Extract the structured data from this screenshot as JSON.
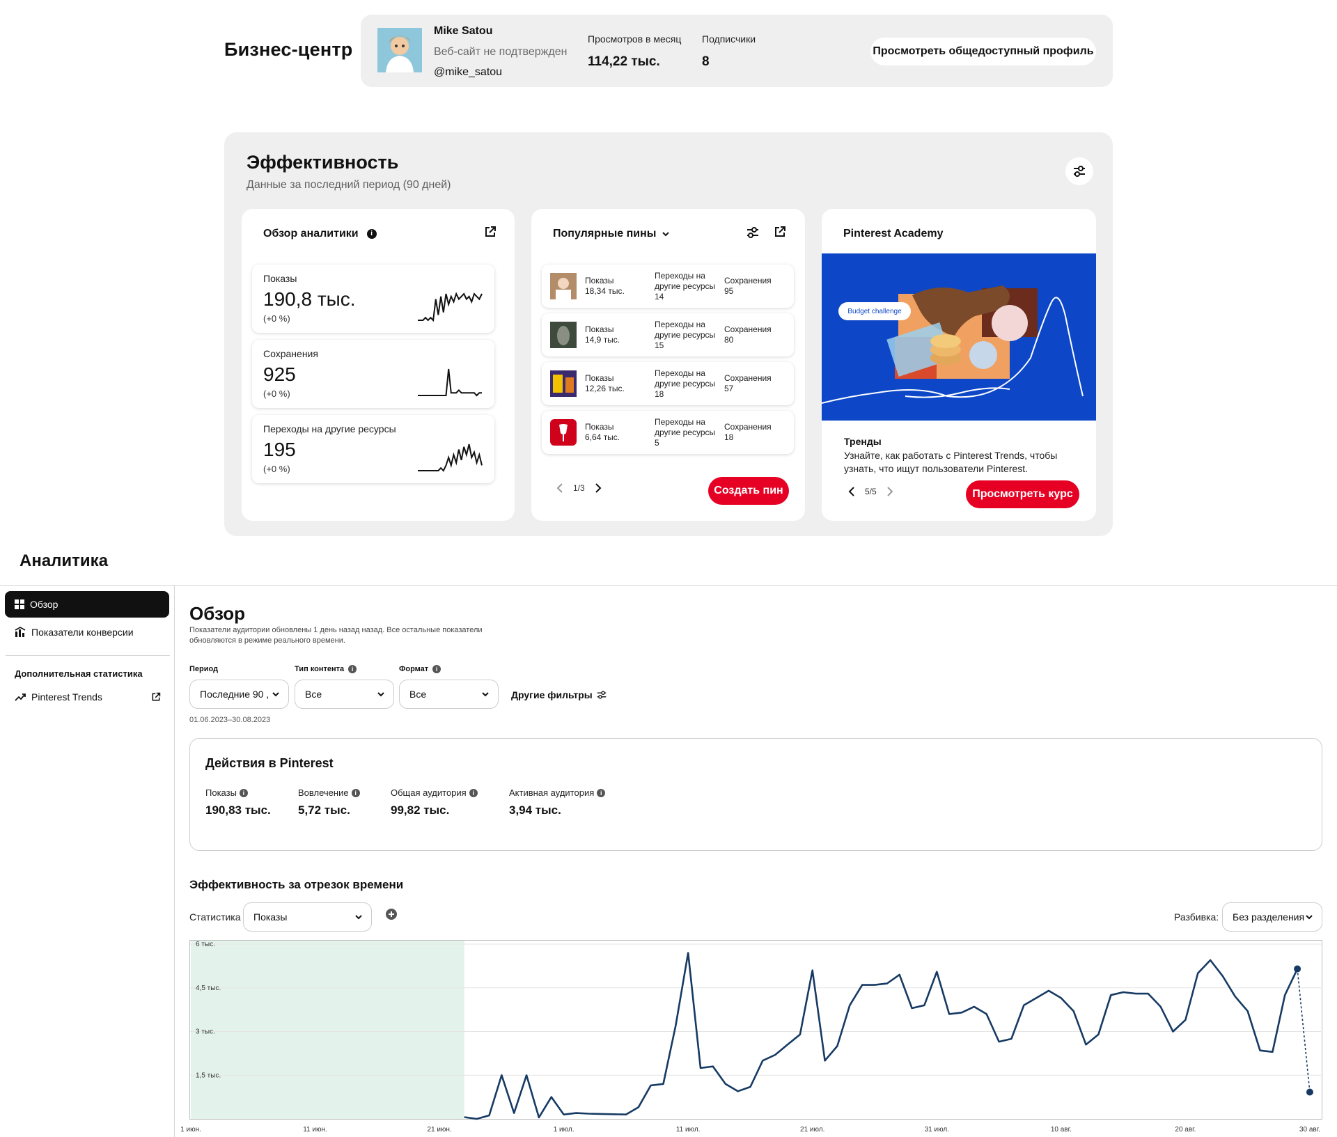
{
  "business": {
    "title": "Бизнес-центр",
    "profile": {
      "name": "Mike Satou",
      "website_status": "Веб-сайт не подтвержден",
      "handle": "@mike_satou",
      "monthly_views_label": "Просмотров в месяц",
      "monthly_views": "114,22 тыс.",
      "followers_label": "Подписчики",
      "followers": "8",
      "public_profile_button": "Просмотреть общедоступный профиль"
    }
  },
  "performance": {
    "title": "Эффективность",
    "subtitle": "Данные за последний период (90 дней)",
    "overview": {
      "title": "Обзор аналитики",
      "metrics": [
        {
          "label": "Показы",
          "value": "190,8 тыс.",
          "change": "(+0 %)",
          "spark": [
            0,
            0,
            0,
            1,
            0,
            1,
            0,
            8,
            2,
            9,
            3,
            10,
            6,
            9,
            7,
            10,
            8,
            9,
            10,
            8,
            9,
            7,
            10,
            9,
            8,
            10
          ]
        },
        {
          "label": "Сохранения",
          "value": "925",
          "change": "(+0 %)",
          "spark": [
            0,
            0,
            0,
            0,
            0,
            0,
            0,
            0,
            0,
            0,
            0,
            0,
            10,
            1,
            1,
            1,
            2,
            1,
            1,
            1,
            1,
            1,
            1,
            0,
            1,
            1
          ]
        },
        {
          "label": "Переходы на другие ресурсы",
          "value": "195",
          "change": "(+0 %)",
          "spark": [
            0,
            0,
            0,
            0,
            0,
            0,
            0,
            0,
            0,
            1,
            0,
            2,
            5,
            2,
            6,
            3,
            8,
            4,
            9,
            6,
            10,
            5,
            7,
            3,
            6,
            2
          ]
        }
      ]
    },
    "popular_pins": {
      "title": "Популярные пины",
      "impressions_label": "Показы",
      "clicks_label": "Переходы на другие ресурсы",
      "saves_label": "Сохранения",
      "rows": [
        {
          "impressions": "18,34 тыс.",
          "clicks": "14",
          "saves": "95",
          "thumb_color": "#b38d6a"
        },
        {
          "impressions": "14,9 тыс.",
          "clicks": "15",
          "saves": "80",
          "thumb_color": "#3e4a3c"
        },
        {
          "impressions": "12,26 тыс.",
          "clicks": "18",
          "saves": "57",
          "thumb_color": "#3b2a6e"
        },
        {
          "impressions": "6,64 тыс.",
          "clicks": "5",
          "saves": "18",
          "thumb_color": "#d0021b"
        }
      ],
      "pager": "1/3",
      "create_button": "Создать пин"
    },
    "academy": {
      "title": "Pinterest Academy",
      "banner_tag": "Budget challenge",
      "heading": "Тренды",
      "text": "Узнайте, как работать с Pinterest Trends, чтобы узнать, что ищут пользователи Pinterest.",
      "pager": "5/5",
      "course_button": "Просмотреть курс"
    }
  },
  "analytics": {
    "title": "Аналитика",
    "sidebar": {
      "items": [
        {
          "label": "Обзор",
          "icon": "grid-icon",
          "active": true
        },
        {
          "label": "Показатели конверсии",
          "icon": "conversion-icon",
          "active": false
        }
      ],
      "extra_heading": "Дополнительная статистика",
      "extra_items": [
        {
          "label": "Pinterest Trends",
          "icon": "trend-icon"
        }
      ]
    },
    "overview": {
      "title": "Обзор",
      "note": "Показатели аудитории обновлены 1 день назад назад. Все остальные показатели обновляются в режиме реального времени.",
      "filters": {
        "period_label": "Период",
        "period_value": "Последние 90 ,",
        "content_type_label": "Тип контента",
        "content_type_value": "Все",
        "format_label": "Формат",
        "format_value": "Все",
        "other_filters": "Другие фильтры",
        "date_range": "01.06.2023–30.08.2023"
      },
      "actions": {
        "title": "Действия в Pinterest",
        "stats": [
          {
            "label": "Показы",
            "value": "190,83 тыс."
          },
          {
            "label": "Вовлечение",
            "value": "5,72 тыс."
          },
          {
            "label": "Общая аудитория",
            "value": "99,82 тыс."
          },
          {
            "label": "Активная аудитория",
            "value": "3,94 тыс."
          }
        ]
      },
      "chart_section": {
        "title": "Эффективность за отрезок времени",
        "metric_label": "Статистика",
        "metric_value": "Показы",
        "breakdown_label": "Разбивка:",
        "breakdown_value": "Без разделения"
      }
    }
  },
  "chart_data": {
    "type": "line",
    "title": "",
    "xlabel": "",
    "ylabel": "",
    "ylim": [
      0,
      6000
    ],
    "y_ticks": [
      1500,
      3000,
      4500,
      6000
    ],
    "y_tick_labels": [
      "1,5 тыс.",
      "3 тыс.",
      "4,5 тыс.",
      "6 тыс."
    ],
    "x_ticks": [
      0,
      10,
      20,
      30,
      40,
      50,
      60,
      70,
      80,
      90
    ],
    "x_tick_labels": [
      "1 июн.",
      "11 июн.",
      "21 июн.",
      "1 июл.",
      "11 июл.",
      "21 июл.",
      "31 июл.",
      "10 авг.",
      "20 авг.",
      "30 авг."
    ],
    "highlight_range": [
      0,
      22
    ],
    "series_color": "#163a63",
    "highlight_color": "#e3f3ec",
    "series": [
      {
        "x": [
          22,
          23,
          24,
          25,
          26,
          27,
          28,
          29,
          30,
          31,
          32,
          33,
          34,
          35,
          36,
          37,
          38,
          39,
          40,
          41,
          42,
          43,
          44,
          45,
          46,
          47,
          48,
          49,
          50,
          51,
          52,
          53,
          54,
          55,
          56,
          57,
          58,
          59,
          60,
          61,
          62,
          63,
          64,
          65,
          66,
          67,
          68,
          69,
          70,
          71,
          72,
          73,
          74,
          75,
          76,
          77,
          78,
          79,
          80,
          81,
          82,
          83,
          84,
          85,
          86,
          87,
          88,
          89
        ],
        "y": [
          60,
          0,
          120,
          1500,
          200,
          1500,
          50,
          750,
          150,
          200,
          180,
          170,
          160,
          150,
          400,
          1150,
          1200,
          3200,
          5700,
          1750,
          1800,
          1200,
          950,
          1100,
          2000,
          2200,
          2550,
          2900,
          5100,
          2000,
          2500,
          3900,
          4600,
          4600,
          4650,
          4950,
          3800,
          3900,
          5050,
          3600,
          3650,
          3850,
          3600,
          2650,
          2750,
          3900,
          4150,
          4400,
          4150,
          3700,
          2550,
          2900,
          4250,
          4350,
          4300,
          4300,
          3850,
          3000,
          3400,
          5000,
          5450,
          4900,
          4200,
          3700,
          2350,
          2300,
          4250,
          5150
        ]
      }
    ],
    "dashed_segment": {
      "x": [
        89,
        90
      ],
      "y": [
        5150,
        920
      ]
    }
  }
}
